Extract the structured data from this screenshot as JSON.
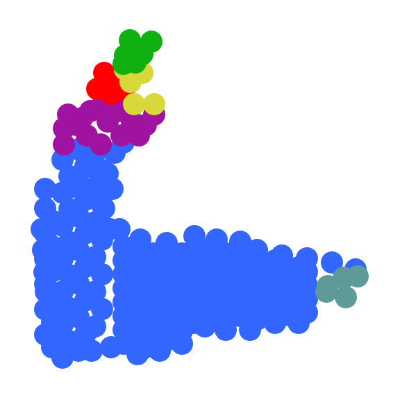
{
  "figure": {
    "kind": "molecular-style blob graph",
    "background": "#ffffff",
    "node_radius": 16,
    "edge_color": "#111111",
    "groups": [
      {
        "name": "blue",
        "color": "#3366ff"
      },
      {
        "name": "purple",
        "color": "#a012a0"
      },
      {
        "name": "red",
        "color": "#ff0000"
      },
      {
        "name": "yellow",
        "color": "#d8d83a"
      },
      {
        "name": "green",
        "color": "#10b010"
      },
      {
        "name": "teal",
        "color": "#5f9a98"
      }
    ]
  }
}
